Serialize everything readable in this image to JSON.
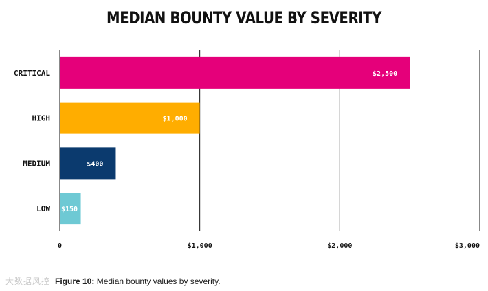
{
  "chart_data": {
    "type": "bar",
    "orientation": "horizontal",
    "title": "MEDIAN BOUNTY VALUE BY SEVERITY",
    "categories": [
      "CRITICAL",
      "HIGH",
      "MEDIUM",
      "LOW"
    ],
    "values": [
      2500,
      1000,
      400,
      150
    ],
    "data_labels": [
      "$2,500",
      "$1,000",
      "$400",
      "$150"
    ],
    "colors": [
      "#e5007a",
      "#ffad00",
      "#0b3a6e",
      "#6ec9d4"
    ],
    "xlim": [
      0,
      3000
    ],
    "xticks": [
      0,
      1000,
      2000,
      3000
    ],
    "xtick_labels": [
      "0",
      "$1,000",
      "$2,000",
      "$3,000"
    ],
    "xlabel": "",
    "ylabel": "",
    "grid": "vertical"
  },
  "caption": {
    "prefix": "Figure 10:",
    "text": " Median bounty values by severity."
  },
  "watermark": "大数据风控"
}
